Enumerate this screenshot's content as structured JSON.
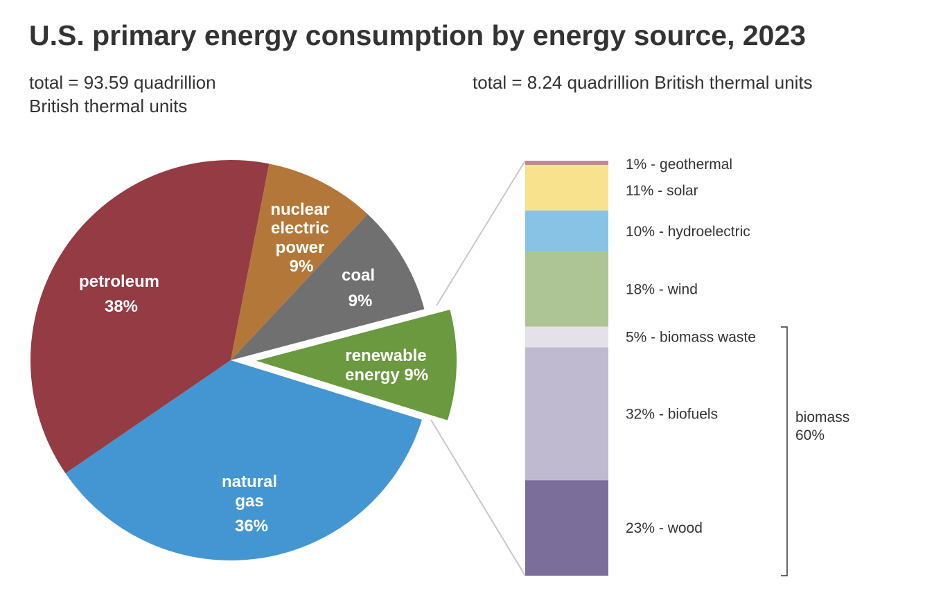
{
  "chart_data": [
    {
      "type": "pie",
      "title": "U.S. primary energy consumption by energy source, 2023",
      "subtitle": "total = 93.59 quadrillion British thermal units",
      "subtitle_lines": [
        "total = 93.59 quadrillion",
        "British thermal units"
      ],
      "slices": [
        {
          "name": "petroleum",
          "value": 38,
          "label_lines": [
            "petroleum",
            "38%"
          ],
          "color": "#943B43"
        },
        {
          "name": "nuclear electric power",
          "value": 9,
          "label_lines": [
            "nuclear",
            "electric",
            "power",
            "9%"
          ],
          "color": "#B37839"
        },
        {
          "name": "coal",
          "value": 9,
          "label_lines": [
            "coal",
            "9%"
          ],
          "color": "#707070"
        },
        {
          "name": "renewable energy",
          "value": 9,
          "label_lines": [
            "renewable",
            "energy 9%"
          ],
          "color": "#6A993F",
          "exploded": true
        },
        {
          "name": "natural gas",
          "value": 36,
          "label_lines": [
            "natural",
            "gas",
            "36%"
          ],
          "color": "#4496D3"
        }
      ]
    },
    {
      "type": "bar",
      "stacked": true,
      "subtitle": "total = 8.24 quadrillion British thermal units",
      "segments": [
        {
          "name": "geothermal",
          "value": 1,
          "label": "1% - geothermal",
          "color": "#C08A8A"
        },
        {
          "name": "solar",
          "value": 11,
          "label": "11% - solar",
          "color": "#F9E28D"
        },
        {
          "name": "hydroelectric",
          "value": 10,
          "label": "10% - hydroelectric",
          "color": "#88C3E6"
        },
        {
          "name": "wind",
          "value": 18,
          "label": "18% - wind",
          "color": "#ADC594"
        },
        {
          "name": "biomass waste",
          "value": 5,
          "label": "5% - biomass waste",
          "color": "#E5E1EA"
        },
        {
          "name": "biofuels",
          "value": 32,
          "label": "32% - biofuels",
          "color": "#C0BAD0"
        },
        {
          "name": "wood",
          "value": 23,
          "label": "23% - wood",
          "color": "#7B6E9A"
        }
      ],
      "group_annotation": {
        "label_lines": [
          "biomass",
          "60%"
        ],
        "members": [
          "biomass waste",
          "biofuels",
          "wood"
        ]
      }
    }
  ]
}
